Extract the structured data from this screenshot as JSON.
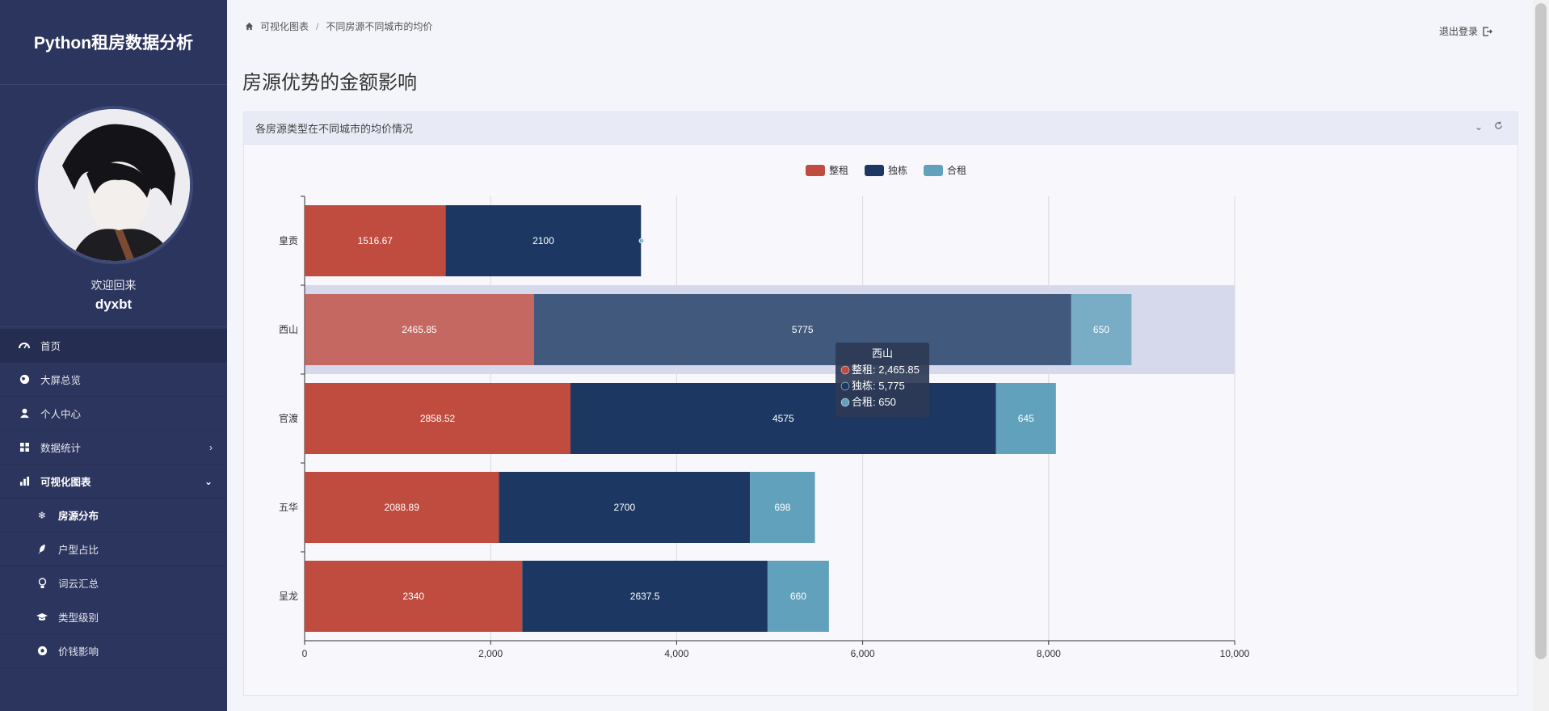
{
  "app": {
    "title": "Python租房数据分析"
  },
  "profile": {
    "welcome": "欢迎回来",
    "username": "dyxbt"
  },
  "sidebar": {
    "items": [
      {
        "label": "首页",
        "icon": "dashboard-icon"
      },
      {
        "label": "大屏总览",
        "icon": "globe-icon"
      },
      {
        "label": "个人中心",
        "icon": "user-icon"
      },
      {
        "label": "数据统计",
        "icon": "grid-icon"
      },
      {
        "label": "可视化图表",
        "icon": "bar-chart-icon"
      },
      {
        "label": "房源分布",
        "icon": "snowflake-icon"
      },
      {
        "label": "户型占比",
        "icon": "feather-icon"
      },
      {
        "label": "词云汇总",
        "icon": "lightbulb-icon"
      },
      {
        "label": "类型级别",
        "icon": "graduation-cap-icon"
      },
      {
        "label": "价钱影响",
        "icon": "soccer-ball-icon"
      }
    ]
  },
  "breadcrumb": {
    "home": "可视化图表",
    "current": "不同房源不同城市的均价"
  },
  "header": {
    "logout": "退出登录"
  },
  "page": {
    "title": "房源优势的金额影响"
  },
  "card": {
    "title": "各房源类型在不同城市的均价情况"
  },
  "colors": {
    "整租": "#c04b3f",
    "独栋": "#1c3862",
    "合租": "#62a1bc"
  },
  "chart_data": {
    "type": "bar",
    "orientation": "horizontal",
    "stacked": true,
    "categories": [
      "皇贡",
      "西山",
      "官渡",
      "五华",
      "呈龙"
    ],
    "series": [
      {
        "name": "整租",
        "values": [
          1516.67,
          2465.85,
          2858.52,
          2088.89,
          2340
        ]
      },
      {
        "name": "独栋",
        "values": [
          2100,
          5775,
          4575,
          2700,
          2637.5
        ]
      },
      {
        "name": "合租",
        "values": [
          0,
          650,
          645,
          698,
          660
        ]
      }
    ],
    "xlim": [
      0,
      10000
    ],
    "xticks": [
      "0",
      "2,000",
      "4,000",
      "6,000",
      "8,000",
      "10,000"
    ],
    "legend_position": "top-center",
    "grid": true,
    "highlighted_category": "西山",
    "tooltip": {
      "title": "西山",
      "rows": [
        "整租: 2,465.85",
        "独栋: 5,775",
        "合租: 650"
      ]
    }
  }
}
